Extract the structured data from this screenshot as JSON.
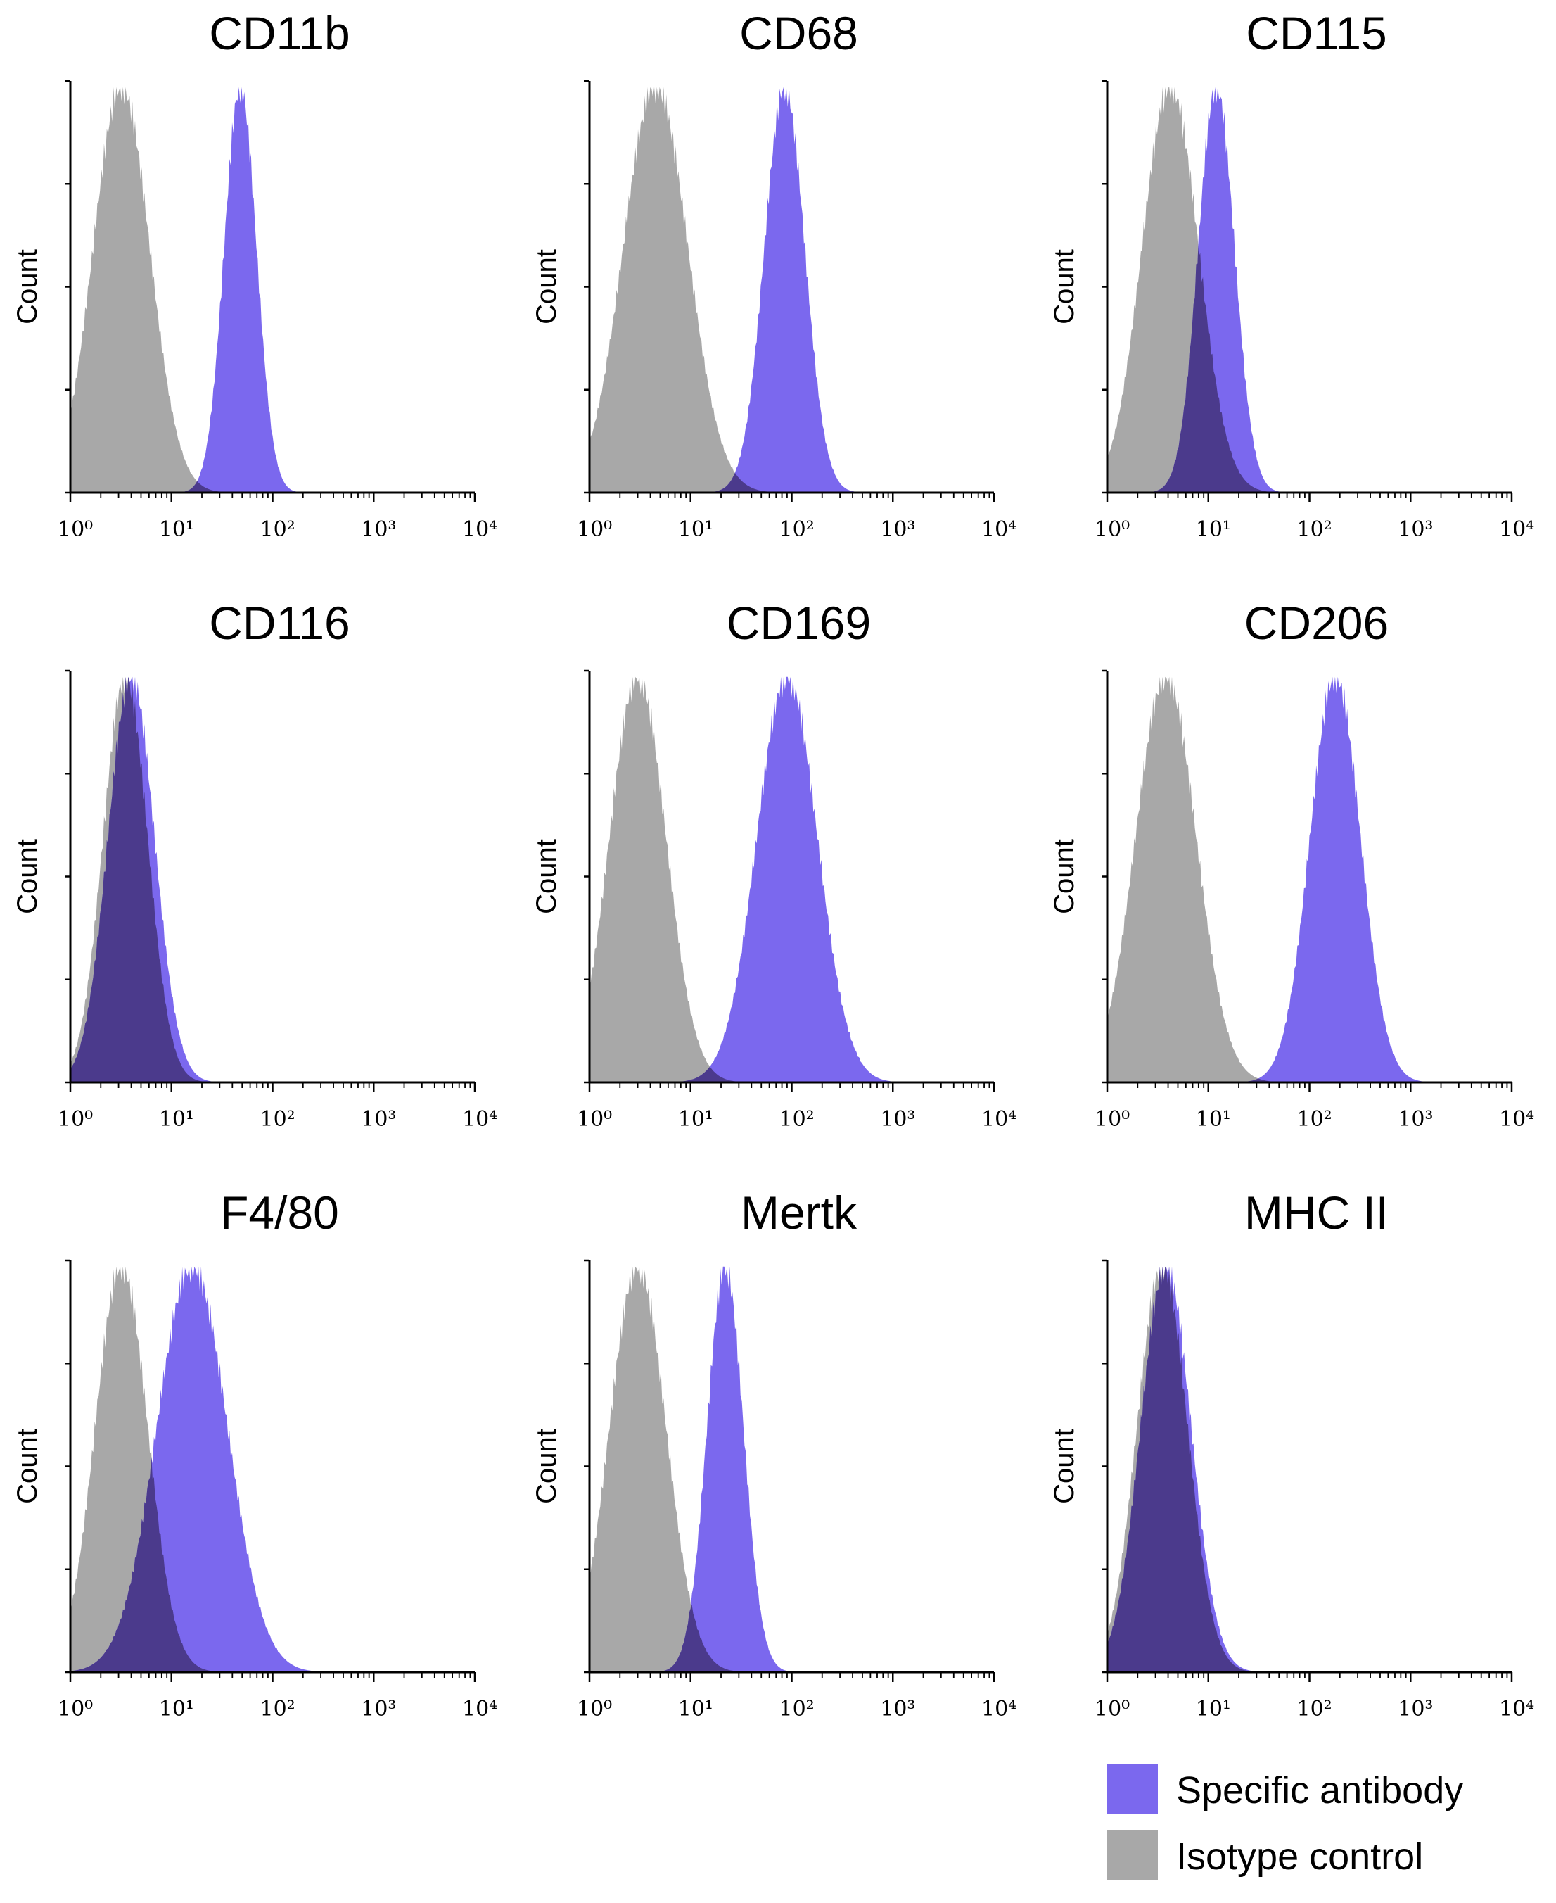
{
  "colors": {
    "specific": "#7b68ee",
    "isotype": "#a8a8a8",
    "overlap": "#4b3a8c"
  },
  "legend": {
    "specific_label": "Specific antibody",
    "isotype_label": "Isotype control"
  },
  "chart_data": [
    {
      "type": "area",
      "title": "CD11b",
      "ylabel": "Count",
      "xscale": "log",
      "xlim": [
        1,
        10000
      ],
      "xticks": [
        "10^0",
        "10^1",
        "10^2",
        "10^3",
        "10^4"
      ],
      "series": [
        {
          "name": "Isotype control",
          "peak": 3.2,
          "sigma": 0.28
        },
        {
          "name": "Specific antibody",
          "peak": 48,
          "sigma": 0.16
        }
      ]
    },
    {
      "type": "area",
      "title": "CD68",
      "ylabel": "Count",
      "xscale": "log",
      "xlim": [
        1,
        10000
      ],
      "xticks": [
        "10^0",
        "10^1",
        "10^2",
        "10^3",
        "10^4"
      ],
      "series": [
        {
          "name": "Isotype control",
          "peak": 4.5,
          "sigma": 0.32
        },
        {
          "name": "Specific antibody",
          "peak": 85,
          "sigma": 0.2
        }
      ]
    },
    {
      "type": "area",
      "title": "CD115",
      "ylabel": "Count",
      "xscale": "log",
      "xlim": [
        1,
        10000
      ],
      "xticks": [
        "10^0",
        "10^1",
        "10^2",
        "10^3",
        "10^4"
      ],
      "series": [
        {
          "name": "Isotype control",
          "peak": 4.2,
          "sigma": 0.28
        },
        {
          "name": "Specific antibody",
          "peak": 12,
          "sigma": 0.18
        }
      ]
    },
    {
      "type": "area",
      "title": "CD116",
      "ylabel": "Count",
      "xscale": "log",
      "xlim": [
        1,
        10000
      ],
      "xticks": [
        "10^0",
        "10^1",
        "10^2",
        "10^3",
        "10^4"
      ],
      "series": [
        {
          "name": "Isotype control",
          "peak": 3.5,
          "sigma": 0.22
        },
        {
          "name": "Specific antibody",
          "peak": 4.0,
          "sigma": 0.23
        }
      ]
    },
    {
      "type": "area",
      "title": "CD169",
      "ylabel": "Count",
      "xscale": "log",
      "xlim": [
        1,
        10000
      ],
      "xticks": [
        "10^0",
        "10^1",
        "10^2",
        "10^3",
        "10^4"
      ],
      "series": [
        {
          "name": "Isotype control",
          "peak": 3.0,
          "sigma": 0.28
        },
        {
          "name": "Specific antibody",
          "peak": 90,
          "sigma": 0.3
        }
      ]
    },
    {
      "type": "area",
      "title": "CD206",
      "ylabel": "Count",
      "xscale": "log",
      "xlim": [
        1,
        10000
      ],
      "xticks": [
        "10^0",
        "10^1",
        "10^2",
        "10^3",
        "10^4"
      ],
      "series": [
        {
          "name": "Isotype control",
          "peak": 3.8,
          "sigma": 0.3
        },
        {
          "name": "Specific antibody",
          "peak": 180,
          "sigma": 0.25
        }
      ]
    },
    {
      "type": "area",
      "title": "F4/80",
      "ylabel": "Count",
      "xscale": "log",
      "xlim": [
        1,
        10000
      ],
      "xticks": [
        "10^0",
        "10^1",
        "10^2",
        "10^3",
        "10^4"
      ],
      "series": [
        {
          "name": "Isotype control",
          "peak": 3.2,
          "sigma": 0.26
        },
        {
          "name": "Specific antibody",
          "peak": 16,
          "sigma": 0.35
        }
      ]
    },
    {
      "type": "area",
      "title": "Mertk",
      "ylabel": "Count",
      "xscale": "log",
      "xlim": [
        1,
        10000
      ],
      "xticks": [
        "10^0",
        "10^1",
        "10^2",
        "10^3",
        "10^4"
      ],
      "series": [
        {
          "name": "Isotype control",
          "peak": 3.0,
          "sigma": 0.28
        },
        {
          "name": "Specific antibody",
          "peak": 22,
          "sigma": 0.18
        }
      ]
    },
    {
      "type": "area",
      "title": "MHC II",
      "ylabel": "Count",
      "xscale": "log",
      "xlim": [
        1,
        10000
      ],
      "xticks": [
        "10^0",
        "10^1",
        "10^2",
        "10^3",
        "10^4"
      ],
      "series": [
        {
          "name": "Isotype control",
          "peak": 3.5,
          "sigma": 0.25
        },
        {
          "name": "Specific antibody",
          "peak": 3.8,
          "sigma": 0.25
        }
      ]
    }
  ]
}
